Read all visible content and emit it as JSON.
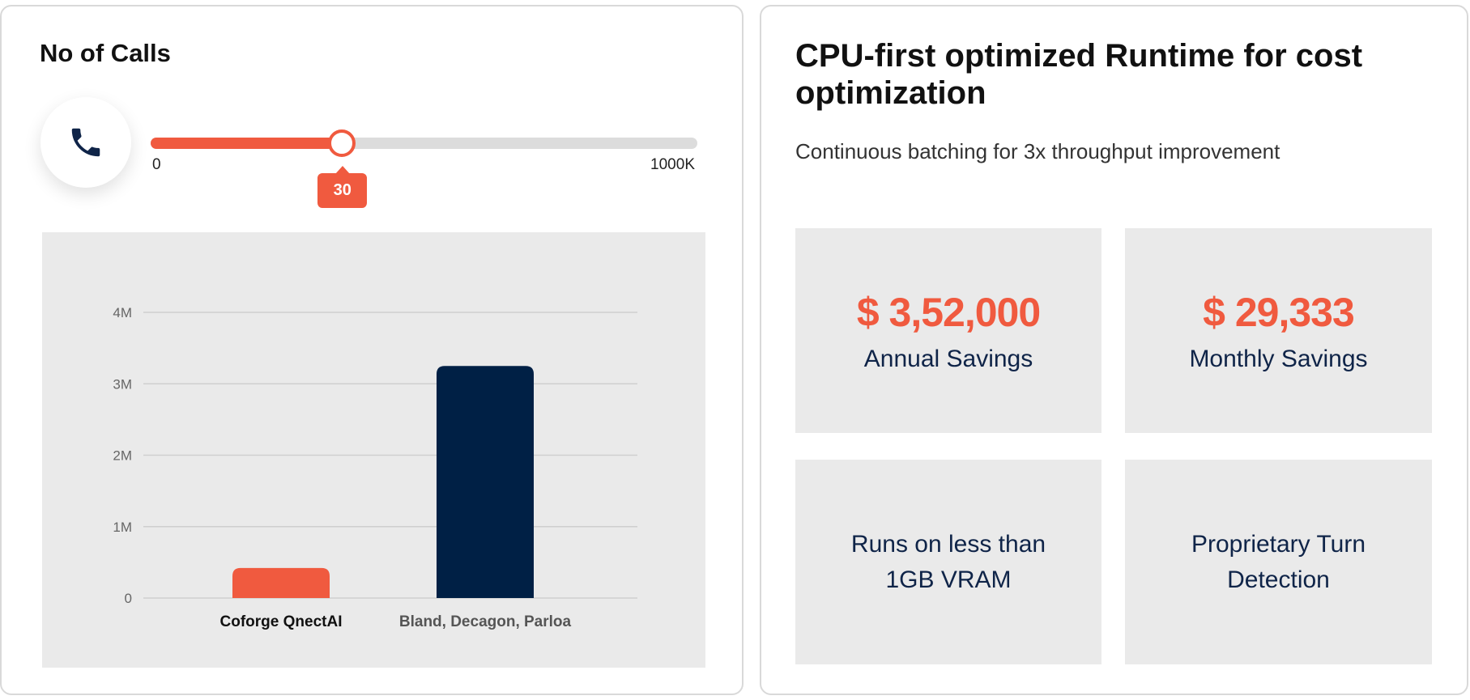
{
  "left_card": {
    "title": "No of Calls",
    "slider": {
      "min_label": "0",
      "max_label": "1000K",
      "value_label": "30",
      "fraction": 0.35
    },
    "icons": {
      "phone": "phone-icon"
    }
  },
  "chart_data": {
    "type": "bar",
    "categories": [
      "Coforge QnectAI",
      "Bland, Decagon, Parloa"
    ],
    "values": [
      420000,
      3250000
    ],
    "ylim": [
      0,
      4000000
    ],
    "yticks": [
      0,
      1000000,
      2000000,
      3000000,
      4000000
    ],
    "ytick_labels": [
      "0",
      "1M",
      "2M",
      "3M",
      "4M"
    ],
    "colors": [
      "#f05a3f",
      "#002045"
    ],
    "grid": true,
    "title": "",
    "xlabel": "",
    "ylabel": ""
  },
  "right_card": {
    "title": "CPU-first optimized Runtime for cost optimization",
    "subtitle": "Continuous batching for 3x throughput improvement",
    "tiles": [
      {
        "value": "$ 3,52,000",
        "label": "Annual Savings"
      },
      {
        "value": "$ 29,333",
        "label": "Monthly Savings"
      },
      {
        "text": "Runs on less than 1GB VRAM"
      },
      {
        "text": "Proprietary Turn Detection"
      }
    ]
  },
  "colors": {
    "accent": "#f05a3f",
    "navy": "#002045",
    "tile_bg": "#eaeaea"
  }
}
